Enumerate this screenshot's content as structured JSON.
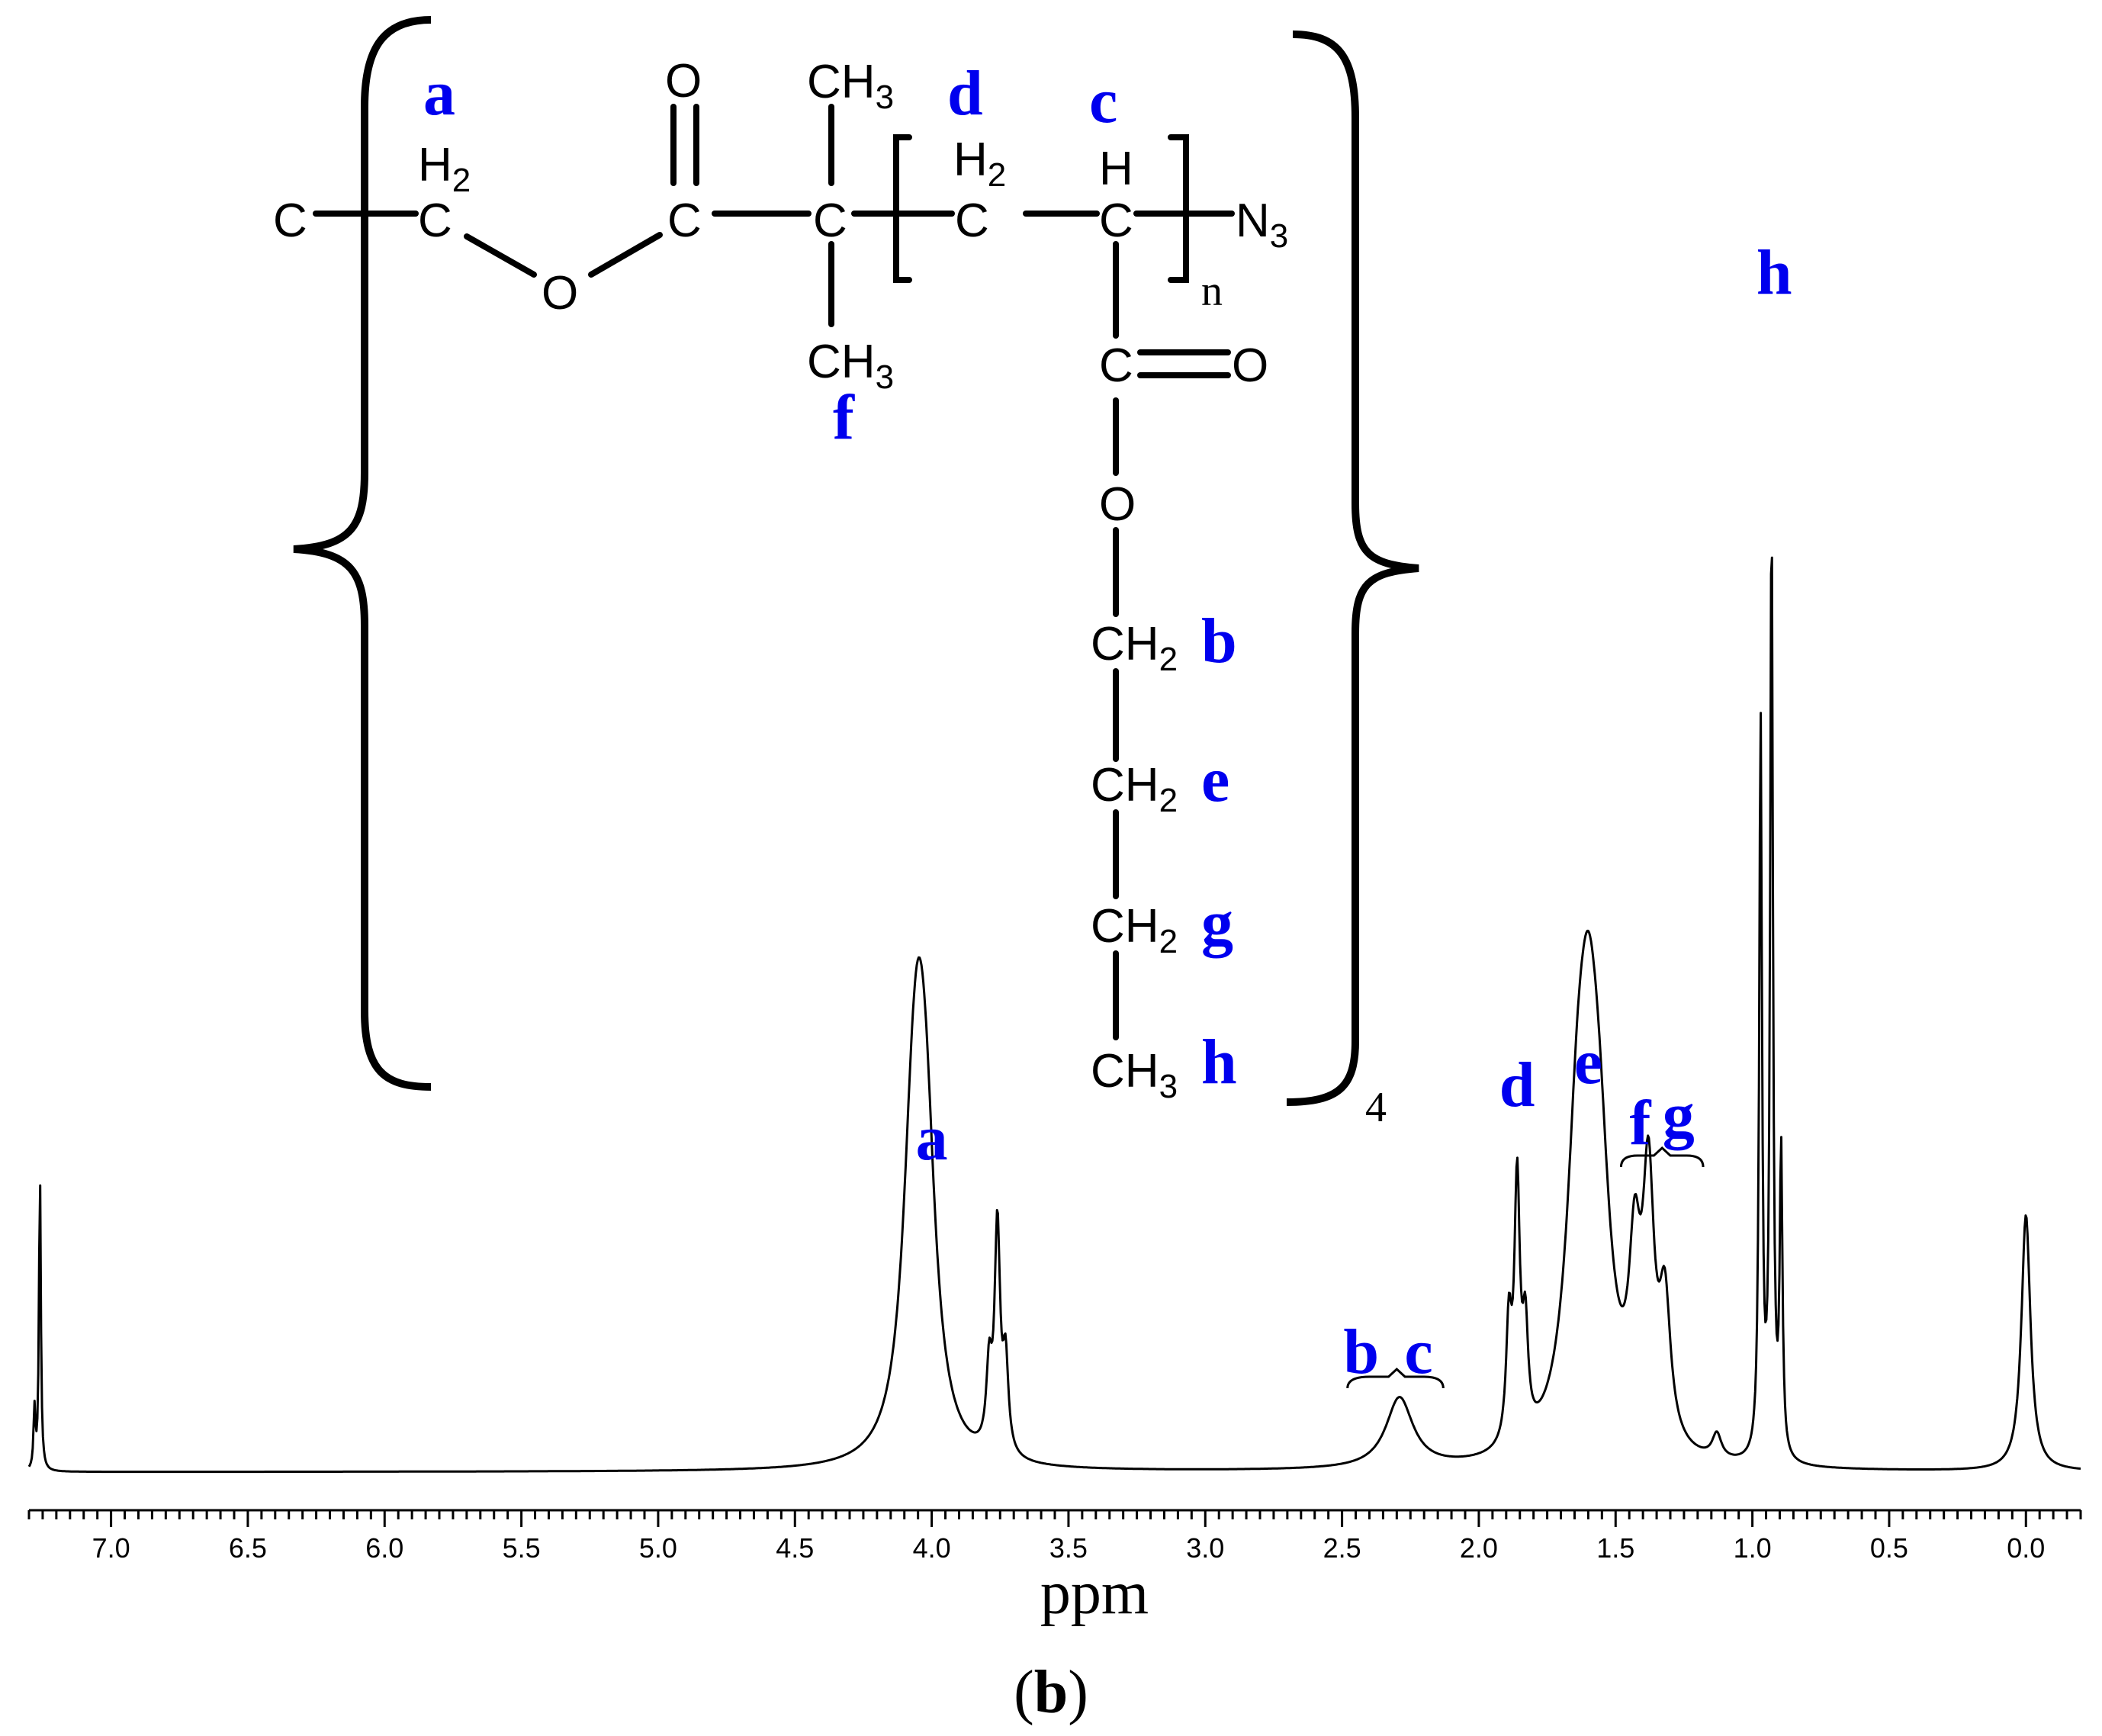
{
  "caption": {
    "open": "(",
    "letter": "b",
    "close": ")"
  },
  "structure": {
    "atoms": {
      "c_left": "C",
      "c_a": "C",
      "h2_a": "H",
      "o_ester": "O",
      "c_carbonyl": "C",
      "o_carbonyl": "O",
      "c_quat": "C",
      "ch3_top": "CH",
      "ch3_bottom": "CH",
      "c_d": "C",
      "h2_d": "H",
      "c_c": "C",
      "h_c": "H",
      "n3": "N",
      "n_sub": "n",
      "c_side": "C",
      "o_side_dbl": "O",
      "o_side": "O",
      "ch2_b": "CH",
      "ch2_e": "CH",
      "ch2_g": "CH",
      "ch3_h": "CH",
      "repeat_count": "4"
    },
    "subscripts": {
      "two": "2",
      "three": "3"
    },
    "proton_labels": {
      "a": "a",
      "b": "b",
      "c": "c",
      "d": "d",
      "e": "e",
      "f": "f",
      "g": "g",
      "h": "h"
    }
  },
  "chart_data": {
    "type": "line",
    "xlabel": "ppm",
    "xlim": [
      7.3,
      -0.2
    ],
    "x_reversed": true,
    "x_ticks": [
      "7.0",
      "6.5",
      "6.0",
      "5.5",
      "5.0",
      "4.5",
      "4.0",
      "3.5",
      "3.0",
      "2.5",
      "2.0",
      "1.5",
      "1.0",
      "0.5",
      "0.0"
    ],
    "grid": false,
    "peaks": [
      {
        "shift": 7.26,
        "intensity": 0.98,
        "label": ""
      },
      {
        "shift": 4.05,
        "intensity": 0.82,
        "label": "a"
      },
      {
        "shift": 3.76,
        "intensity": 0.74,
        "label": ""
      },
      {
        "shift": 2.29,
        "intensity": 0.23,
        "label": "b c"
      },
      {
        "shift": 1.86,
        "intensity": 0.84,
        "label": "d"
      },
      {
        "shift": 1.6,
        "intensity": 0.91,
        "label": "e"
      },
      {
        "shift": 1.38,
        "intensity": 0.81,
        "label": "f g"
      },
      {
        "shift": 1.13,
        "intensity": 0.08,
        "label": ""
      },
      {
        "shift": 0.93,
        "intensity": 3.1,
        "label": "h"
      },
      {
        "shift": 0.0,
        "intensity": 0.84,
        "label": ""
      }
    ],
    "peak_labels": [
      {
        "text": "a",
        "shift": 4.0
      },
      {
        "text": "b",
        "shift": 2.43
      },
      {
        "text": "c",
        "shift": 2.22
      },
      {
        "text": "d",
        "shift": 1.86
      },
      {
        "text": "e",
        "shift": 1.6
      },
      {
        "text": "f",
        "shift": 1.41
      },
      {
        "text": "g",
        "shift": 1.27
      },
      {
        "text": "h",
        "shift": 0.92
      }
    ]
  }
}
